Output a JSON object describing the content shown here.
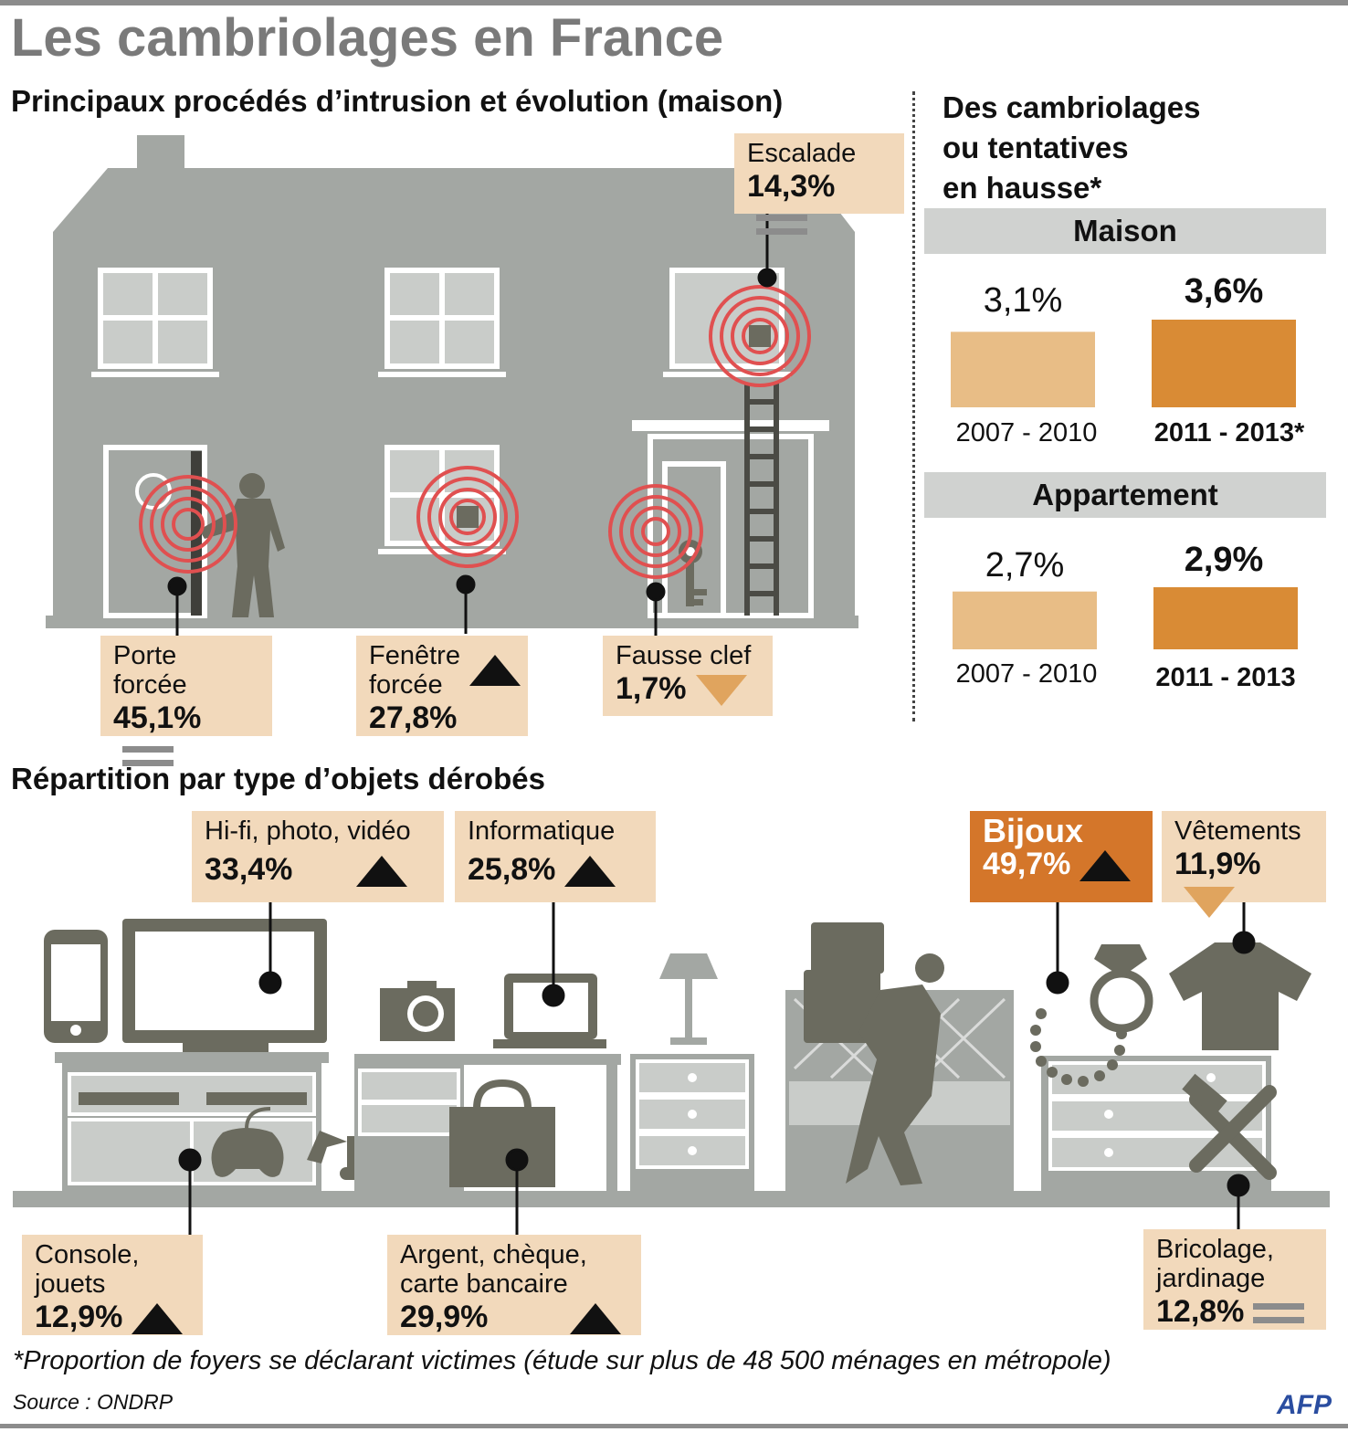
{
  "title": "Les cambriolages en France",
  "section1_title": "Principaux procédés d’intrusion et évolution (maison)",
  "section2_title": "Répartition par type d’objets dérobés",
  "right_title_lines": [
    "Des cambriolages",
    "ou tentatives",
    "en hausse*"
  ],
  "footnote": "*Proportion de foyers se déclarant victimes (étude sur plus de 48 500 ménages en métropole)",
  "source": "Source : ONDRP",
  "logo": "AFP",
  "colors": {
    "light_bar": "#e8bd86",
    "dark_bar": "#d98b35",
    "label_bg": "#f2d9bb",
    "highlight": "#d4762a",
    "target": "#e05050",
    "house": "#a3a7a3",
    "silhouette": "#6b6b5f"
  },
  "intrusion": [
    {
      "name": "Escalade",
      "pct": "14,3%",
      "trend": "equal"
    },
    {
      "name": "Porte forcée",
      "pct": "45,1%",
      "trend": "equal"
    },
    {
      "name": "Fenêtre forcée",
      "pct": "27,8%",
      "trend": "up"
    },
    {
      "name": "Fausse clef",
      "pct": "1,7%",
      "trend": "down"
    }
  ],
  "objects": [
    {
      "name": "Hi-fi, photo, vidéo",
      "pct": "33,4%",
      "trend": "up"
    },
    {
      "name": "Informatique",
      "pct": "25,8%",
      "trend": "up"
    },
    {
      "name": "Bijoux",
      "pct": "49,7%",
      "trend": "up"
    },
    {
      "name": "Vêtements",
      "pct": "11,9%",
      "trend": "down"
    },
    {
      "name": "Console, jouets",
      "pct": "12,9%",
      "trend": "up"
    },
    {
      "name": "Argent, chèque, carte bancaire",
      "pct": "29,9%",
      "trend": "up"
    },
    {
      "name": "Bricolage, jardinage",
      "pct": "12,8%",
      "trend": "equal"
    }
  ],
  "chart_data": [
    {
      "type": "bar",
      "title": "Maison",
      "categories": [
        "2007 - 2010",
        "2011 - 2013*"
      ],
      "values": [
        3.1,
        3.6
      ],
      "labels": [
        "3,1%",
        "3,6%"
      ]
    },
    {
      "type": "bar",
      "title": "Appartement",
      "categories": [
        "2007 - 2010",
        "2011 - 2013"
      ],
      "values": [
        2.7,
        2.9
      ],
      "labels": [
        "2,7%",
        "2,9%"
      ]
    }
  ]
}
